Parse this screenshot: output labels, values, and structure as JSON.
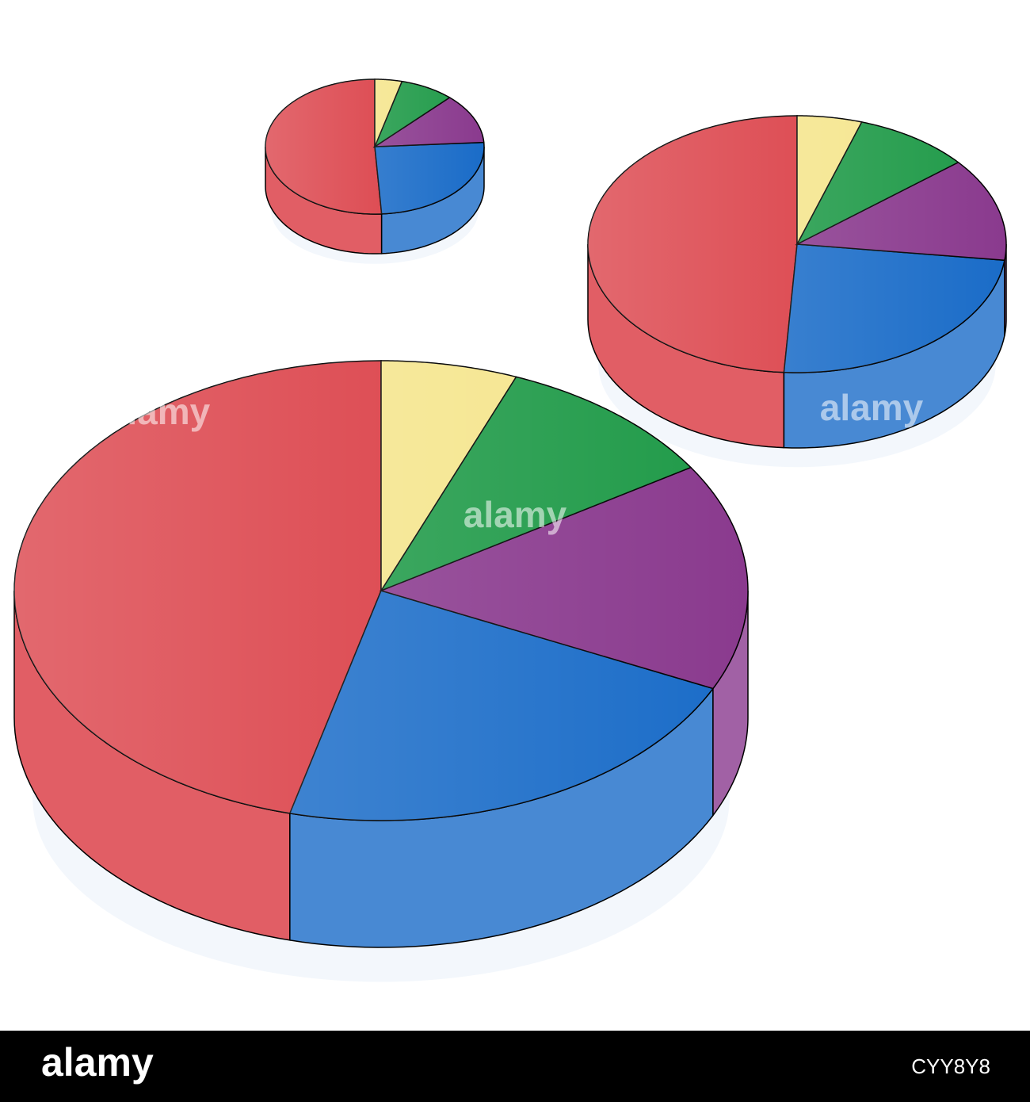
{
  "chart_data": [
    {
      "type": "pie",
      "values": [
        46,
        22,
        16,
        10,
        6
      ],
      "colors": [
        "#d9363e",
        "#1a6cc8",
        "#8a3a8e",
        "#1f9a48",
        "#f5e58c"
      ]
    },
    {
      "type": "pie",
      "values": [
        49,
        24,
        13,
        9,
        5
      ],
      "colors": [
        "#d9363e",
        "#1a6cc8",
        "#8a3a8e",
        "#1f9a48",
        "#f5e58c"
      ]
    },
    {
      "type": "pie",
      "values": [
        51,
        25,
        12,
        8,
        4
      ],
      "colors": [
        "#d9363e",
        "#1a6cc8",
        "#8a3a8e",
        "#1f9a48",
        "#f5e58c"
      ]
    }
  ],
  "watermark": {
    "brand": "alamy",
    "image_id": "CYY8Y8"
  }
}
